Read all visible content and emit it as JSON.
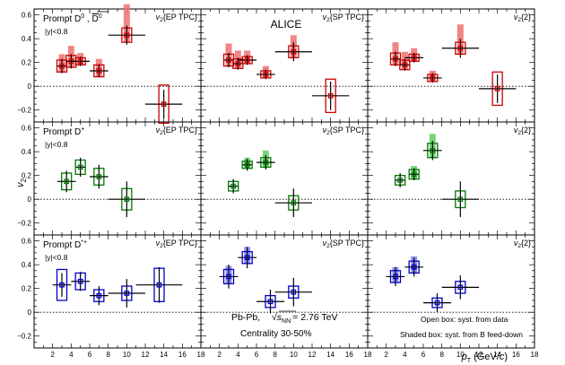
{
  "chart_data": {
    "type": "scatter",
    "experiment": "ALICE",
    "xlabel_main": "p",
    "xlabel_sub": "T",
    "xlabel_unit": " (GeV/",
    "xlabel_unit_c": "c",
    "xlabel_unit_end": ")",
    "ylabel_main": "v",
    "ylabel_sub": "2",
    "xlim": [
      0,
      18
    ],
    "ylim": [
      -0.3,
      0.65
    ],
    "xticks": [
      2,
      4,
      6,
      8,
      10,
      12,
      14,
      16,
      18
    ],
    "yticks": [
      -0.2,
      0,
      0.2,
      0.4,
      0.6
    ],
    "ytick_labels": [
      "−0.2",
      "0",
      "0.2",
      "0.4",
      "0.6"
    ],
    "collision_label": "Pb-Pb,",
    "energy_label": "= 2.76 TeV",
    "sqrt_s_label": "s",
    "sqrt_s_sub": "NN",
    "centrality_label": "Centrality 30-50%",
    "legend_open_box": "Open box: syst. from data",
    "legend_shaded_box": "Shaded box: syst. from B feed-down",
    "methods": [
      "v2{EP TPC}",
      "v2{SP TPC}",
      "v2{2}"
    ],
    "method_labels": [
      {
        "v": "v",
        "sub": "2",
        "rest": "{EP TPC}"
      },
      {
        "v": "v",
        "sub": "2",
        "rest": "{SP TPC}"
      },
      {
        "v": "v",
        "sub": "2",
        "rest": "{2}"
      }
    ],
    "rows": [
      {
        "species": "D0",
        "label_main": "Prompt D",
        "label_sup": "0",
        "label_suffix": " , ",
        "label_bar": "D",
        "label_bar_sup": "0",
        "rapidity": "|y|<0.8",
        "color": "#cc0000",
        "feeddown_color": "#f07070",
        "panels": [
          {
            "x": [
              3.0,
              4.0,
              5.0,
              7.0,
              10.0,
              14.0
            ],
            "xerr": [
              0.5,
              0.5,
              1.0,
              1.0,
              2.0,
              2.0
            ],
            "y": [
              0.17,
              0.21,
              0.21,
              0.13,
              0.43,
              -0.15
            ],
            "stat": [
              0.06,
              0.06,
              0.04,
              0.05,
              0.08,
              0.12
            ],
            "sys": [
              0.05,
              0.05,
              0.03,
              0.05,
              0.06,
              0.16
            ],
            "fd_hi": [
              0.05,
              0.08,
              0.04,
              0.05,
              0.2,
              0.0
            ],
            "fd_lo": [
              0.0,
              0.0,
              0.0,
              0.0,
              0.0,
              0.0
            ]
          },
          {
            "x": [
              3.0,
              4.0,
              5.0,
              7.0,
              10.0,
              14.0
            ],
            "xerr": [
              0.5,
              0.5,
              1.0,
              1.0,
              2.0,
              2.0
            ],
            "y": [
              0.22,
              0.19,
              0.22,
              0.1,
              0.29,
              -0.08
            ],
            "stat": [
              0.06,
              0.05,
              0.04,
              0.04,
              0.08,
              0.12
            ],
            "sys": [
              0.05,
              0.04,
              0.03,
              0.03,
              0.05,
              0.14
            ],
            "fd_hi": [
              0.09,
              0.07,
              0.05,
              0.04,
              0.09,
              0.0
            ],
            "fd_lo": [
              0.0,
              0.0,
              0.0,
              0.0,
              0.0,
              0.0
            ]
          },
          {
            "x": [
              3.0,
              4.0,
              5.0,
              7.0,
              10.0,
              14.0
            ],
            "xerr": [
              0.5,
              0.5,
              1.0,
              1.0,
              2.0,
              2.0
            ],
            "y": [
              0.23,
              0.18,
              0.24,
              0.07,
              0.32,
              -0.02
            ],
            "stat": [
              0.06,
              0.05,
              0.04,
              0.04,
              0.08,
              0.12
            ],
            "sys": [
              0.05,
              0.04,
              0.03,
              0.03,
              0.05,
              0.14
            ],
            "fd_hi": [
              0.09,
              0.07,
              0.05,
              0.03,
              0.15,
              0.0
            ],
            "fd_lo": [
              0.0,
              0.0,
              0.0,
              0.0,
              0.0,
              0.0
            ]
          }
        ]
      },
      {
        "species": "Dplus",
        "label_main": "Prompt D",
        "label_sup": "+",
        "rapidity": "|y|<0.8",
        "color": "#007a00",
        "feeddown_color": "#60cc60",
        "panels": [
          {
            "x": [
              3.5,
              5.0,
              7.0,
              10.0
            ],
            "xerr": [
              1.0,
              0.5,
              1.0,
              2.0
            ],
            "y": [
              0.15,
              0.27,
              0.19,
              0.0
            ],
            "stat": [
              0.09,
              0.08,
              0.1,
              0.15
            ],
            "sys": [
              0.07,
              0.06,
              0.07,
              0.09
            ],
            "fd_hi": [
              0.0,
              0.0,
              0.0,
              0.0
            ],
            "fd_lo": [
              0.0,
              0.0,
              0.0,
              0.0
            ]
          },
          {
            "x": [
              3.5,
              5.0,
              7.0,
              10.0
            ],
            "xerr": [
              0.5,
              0.5,
              1.0,
              2.0
            ],
            "y": [
              0.11,
              0.29,
              0.31,
              -0.03
            ],
            "stat": [
              0.06,
              0.05,
              0.06,
              0.12
            ],
            "sys": [
              0.04,
              0.03,
              0.04,
              0.06
            ],
            "fd_hi": [
              0.0,
              0.03,
              0.06,
              0.0
            ],
            "fd_lo": [
              0.0,
              0.0,
              0.0,
              0.0
            ]
          },
          {
            "x": [
              3.5,
              5.0,
              7.0,
              10.0
            ],
            "xerr": [
              0.5,
              0.5,
              1.0,
              2.0
            ],
            "y": [
              0.16,
              0.21,
              0.41,
              0.0
            ],
            "stat": [
              0.06,
              0.05,
              0.08,
              0.15
            ],
            "sys": [
              0.04,
              0.04,
              0.06,
              0.07
            ],
            "fd_hi": [
              0.0,
              0.03,
              0.08,
              0.0
            ],
            "fd_lo": [
              0.0,
              0.0,
              0.0,
              0.0
            ]
          }
        ]
      },
      {
        "species": "Dstar",
        "label_main": "Prompt D",
        "label_sup": "*+",
        "rapidity": "|y|<0.8",
        "color": "#0000cc",
        "feeddown_color": "#8080f0",
        "panels": [
          {
            "x": [
              3.0,
              5.0,
              7.0,
              10.0,
              13.5
            ],
            "xerr": [
              1.0,
              1.0,
              1.0,
              2.0,
              2.5
            ],
            "y": [
              0.23,
              0.26,
              0.14,
              0.16,
              0.23
            ],
            "stat": [
              0.1,
              0.08,
              0.08,
              0.12,
              0.15
            ],
            "sys": [
              0.13,
              0.07,
              0.05,
              0.06,
              0.14
            ],
            "fd_hi": [
              0.0,
              0.0,
              0.0,
              0.0,
              0.0
            ],
            "fd_lo": [
              0.0,
              0.0,
              0.0,
              0.0,
              0.0
            ]
          },
          {
            "x": [
              3.0,
              5.0,
              7.5,
              10.0
            ],
            "xerr": [
              1.0,
              1.0,
              1.5,
              2.0
            ],
            "y": [
              0.3,
              0.46,
              0.09,
              0.17
            ],
            "stat": [
              0.1,
              0.09,
              0.1,
              0.12
            ],
            "sys": [
              0.06,
              0.05,
              0.05,
              0.05
            ],
            "fd_hi": [
              0.03,
              0.04,
              0.0,
              0.0
            ],
            "fd_lo": [
              0.0,
              0.0,
              0.0,
              0.0
            ]
          },
          {
            "x": [
              3.0,
              5.0,
              7.5,
              10.0
            ],
            "xerr": [
              1.0,
              1.0,
              1.5,
              2.0
            ],
            "y": [
              0.3,
              0.38,
              0.08,
              0.21
            ],
            "stat": [
              0.08,
              0.08,
              0.08,
              0.1
            ],
            "sys": [
              0.05,
              0.05,
              0.04,
              0.05
            ],
            "fd_hi": [
              0.03,
              0.04,
              0.0,
              0.0
            ],
            "fd_lo": [
              0.0,
              0.0,
              0.0,
              0.0
            ]
          }
        ]
      }
    ]
  }
}
